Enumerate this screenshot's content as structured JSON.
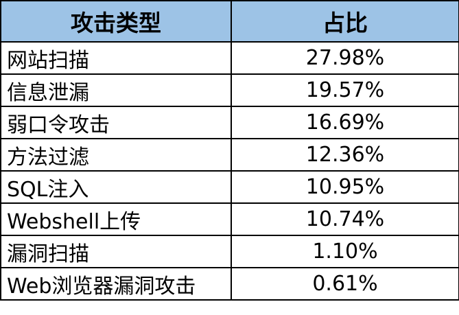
{
  "table": {
    "headers": [
      "攻击类型",
      "占比"
    ],
    "rows": [
      {
        "type": "网站扫描",
        "percent": "27.98%"
      },
      {
        "type": "信息泄漏",
        "percent": "19.57%"
      },
      {
        "type": "弱口令攻击",
        "percent": "16.69%"
      },
      {
        "type": "方法过滤",
        "percent": "12.36%"
      },
      {
        "type": "SQL注入",
        "percent": "10.95%"
      },
      {
        "type": "Webshell上传",
        "percent": "10.74%"
      },
      {
        "type": "漏洞扫描",
        "percent": "1.10%"
      },
      {
        "type": "Web浏览器漏洞攻击",
        "percent": "0.61%"
      }
    ]
  },
  "colors": {
    "header_bg": "#9dc3e6",
    "border": "#000000"
  }
}
